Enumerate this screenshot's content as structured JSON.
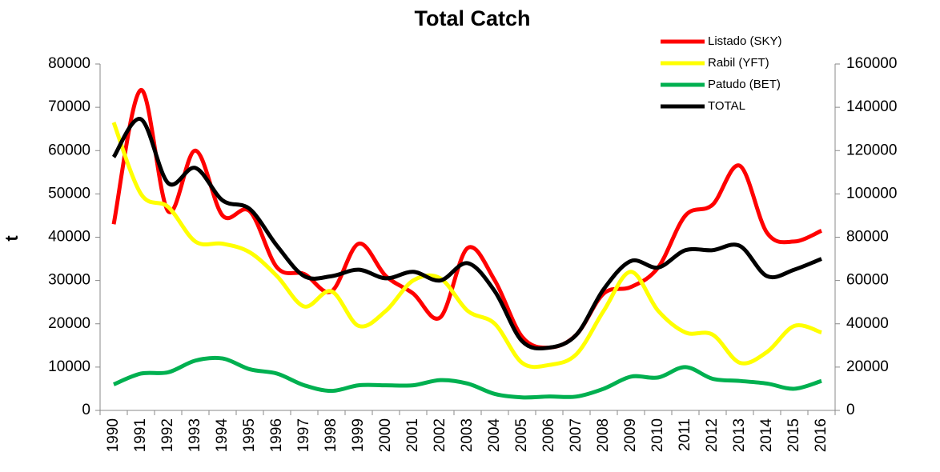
{
  "chart_data": {
    "type": "line",
    "title": "Total  Catch",
    "y_label": "t",
    "categories": [
      "1990",
      "1991",
      "1992",
      "1993",
      "1994",
      "1995",
      "1996",
      "1997",
      "1998",
      "1999",
      "2000",
      "2001",
      "2002",
      "2003",
      "2004",
      "2005",
      "2006",
      "2007",
      "2008",
      "2009",
      "2010",
      "2011",
      "2012",
      "2013",
      "2014",
      "2015",
      "2016"
    ],
    "series": [
      {
        "name": "Listado (SKY)",
        "color": "#ff0000",
        "values": [
          43000,
          74000,
          46000,
          60000,
          45000,
          46000,
          33000,
          31500,
          27500,
          38500,
          31000,
          27000,
          21500,
          37500,
          30000,
          17000,
          14500,
          17500,
          27000,
          28500,
          33000,
          45000,
          47500,
          56500,
          41000,
          39000,
          41500
        ]
      },
      {
        "name": "Rabil (YFT)",
        "color": "#ffff00",
        "values": [
          66500,
          50000,
          47000,
          39000,
          38500,
          36500,
          31000,
          24000,
          27500,
          19500,
          23000,
          30000,
          30500,
          23000,
          20000,
          11000,
          10500,
          13000,
          23000,
          32000,
          23000,
          18000,
          17500,
          11000,
          13500,
          19500,
          18000
        ]
      },
      {
        "name": "Patudo (BET)",
        "color": "#00b050",
        "values": [
          6000,
          8500,
          8800,
          11500,
          12000,
          9500,
          8500,
          5800,
          4500,
          5800,
          5800,
          5800,
          7000,
          6200,
          3800,
          3000,
          3200,
          3200,
          5000,
          7800,
          7600,
          10000,
          7300,
          6800,
          6200,
          5000,
          6800
        ]
      },
      {
        "name": "TOTAL",
        "color": "#000000",
        "axis": "y2",
        "values": [
          117000,
          134500,
          105000,
          112000,
          97000,
          93000,
          76000,
          62000,
          62000,
          65000,
          61000,
          64000,
          60000,
          68000,
          55000,
          32000,
          29000,
          35000,
          56000,
          69000,
          66000,
          74000,
          74000,
          76000,
          62000,
          65000,
          70000
        ]
      }
    ],
    "ylim": [
      0,
      80000
    ],
    "yticks": [
      0,
      10000,
      20000,
      30000,
      40000,
      50000,
      60000,
      70000,
      80000
    ],
    "y2lim": [
      0,
      160000
    ],
    "y2ticks": [
      0,
      20000,
      40000,
      60000,
      80000,
      100000,
      120000,
      140000,
      160000
    ],
    "grid": false,
    "legend": "top-right"
  }
}
